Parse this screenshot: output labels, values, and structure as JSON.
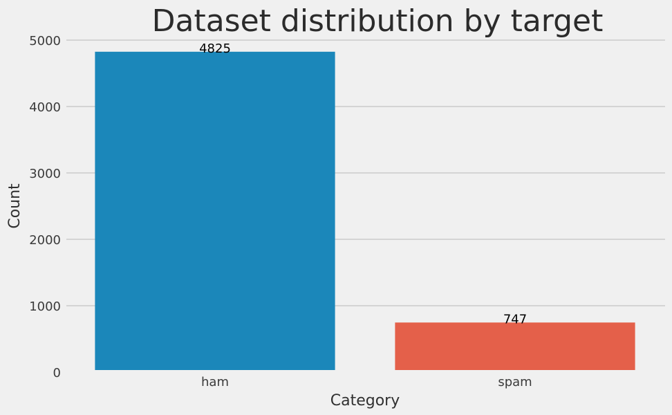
{
  "chart_data": {
    "type": "bar",
    "title": "Dataset distribution by target",
    "xlabel": "Category",
    "ylabel": "Count",
    "categories": [
      "ham",
      "spam"
    ],
    "values": [
      4825,
      747
    ],
    "data_labels": [
      "4825",
      "747"
    ],
    "ylim": [
      0,
      5000
    ],
    "yticks": [
      0,
      1000,
      2000,
      3000,
      4000,
      5000
    ],
    "grid": "horizontal",
    "legend": "none",
    "colors": [
      "#1b87ba",
      "#e4604a"
    ],
    "background": "#f0f0f0"
  }
}
